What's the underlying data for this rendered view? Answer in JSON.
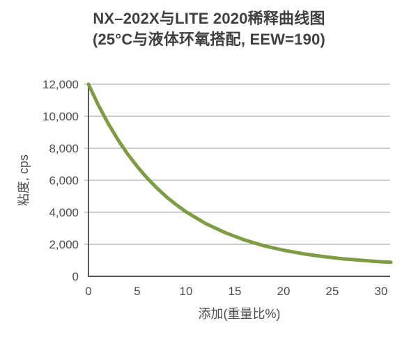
{
  "theme": {
    "background": "#ffffff",
    "curve_color": "#7e9c43",
    "axis_color": "#58595b",
    "grid_color": "#9a9c9e",
    "title_color": "#3f4040",
    "tick_color": "#4d4d4f"
  },
  "chart_data": {
    "type": "line",
    "title": "NX–202X与LITE 2020稀释曲线图",
    "subtitle": "(25°C与液体环氧搭配, EEW=190)",
    "xlabel": "添加(重量比%)",
    "ylabel": "粘度, cps",
    "xlim": [
      0,
      31
    ],
    "ylim": [
      0,
      12000
    ],
    "grid": "horizontal-only",
    "legend": "none",
    "x_ticks": [
      {
        "value": 0,
        "label": "0"
      },
      {
        "value": 5,
        "label": "5"
      },
      {
        "value": 10,
        "label": "10"
      },
      {
        "value": 15,
        "label": "15"
      },
      {
        "value": 20,
        "label": "20"
      },
      {
        "value": 25,
        "label": "25"
      },
      {
        "value": 30,
        "label": "30"
      }
    ],
    "y_ticks": [
      {
        "value": 0,
        "label": "0"
      },
      {
        "value": 2000,
        "label": "2,000"
      },
      {
        "value": 4000,
        "label": "4,000"
      },
      {
        "value": 6000,
        "label": "6,000"
      },
      {
        "value": 8000,
        "label": "8,000"
      },
      {
        "value": 10000,
        "label": "10,000"
      },
      {
        "value": 12000,
        "label": "12,000"
      }
    ],
    "series": [
      {
        "name": "NX-202X",
        "points": [
          [
            0,
            12000
          ],
          [
            1,
            10710
          ],
          [
            2,
            9570
          ],
          [
            3,
            8550
          ],
          [
            4,
            7650
          ],
          [
            5,
            6860
          ],
          [
            6,
            6150
          ],
          [
            7,
            5520
          ],
          [
            8,
            4960
          ],
          [
            9,
            4470
          ],
          [
            10,
            4030
          ],
          [
            12,
            3300
          ],
          [
            14,
            2730
          ],
          [
            16,
            2270
          ],
          [
            18,
            1910
          ],
          [
            20,
            1630
          ],
          [
            22,
            1410
          ],
          [
            24,
            1240
          ],
          [
            26,
            1100
          ],
          [
            28,
            1000
          ],
          [
            30,
            910
          ],
          [
            31,
            880
          ]
        ]
      }
    ]
  }
}
